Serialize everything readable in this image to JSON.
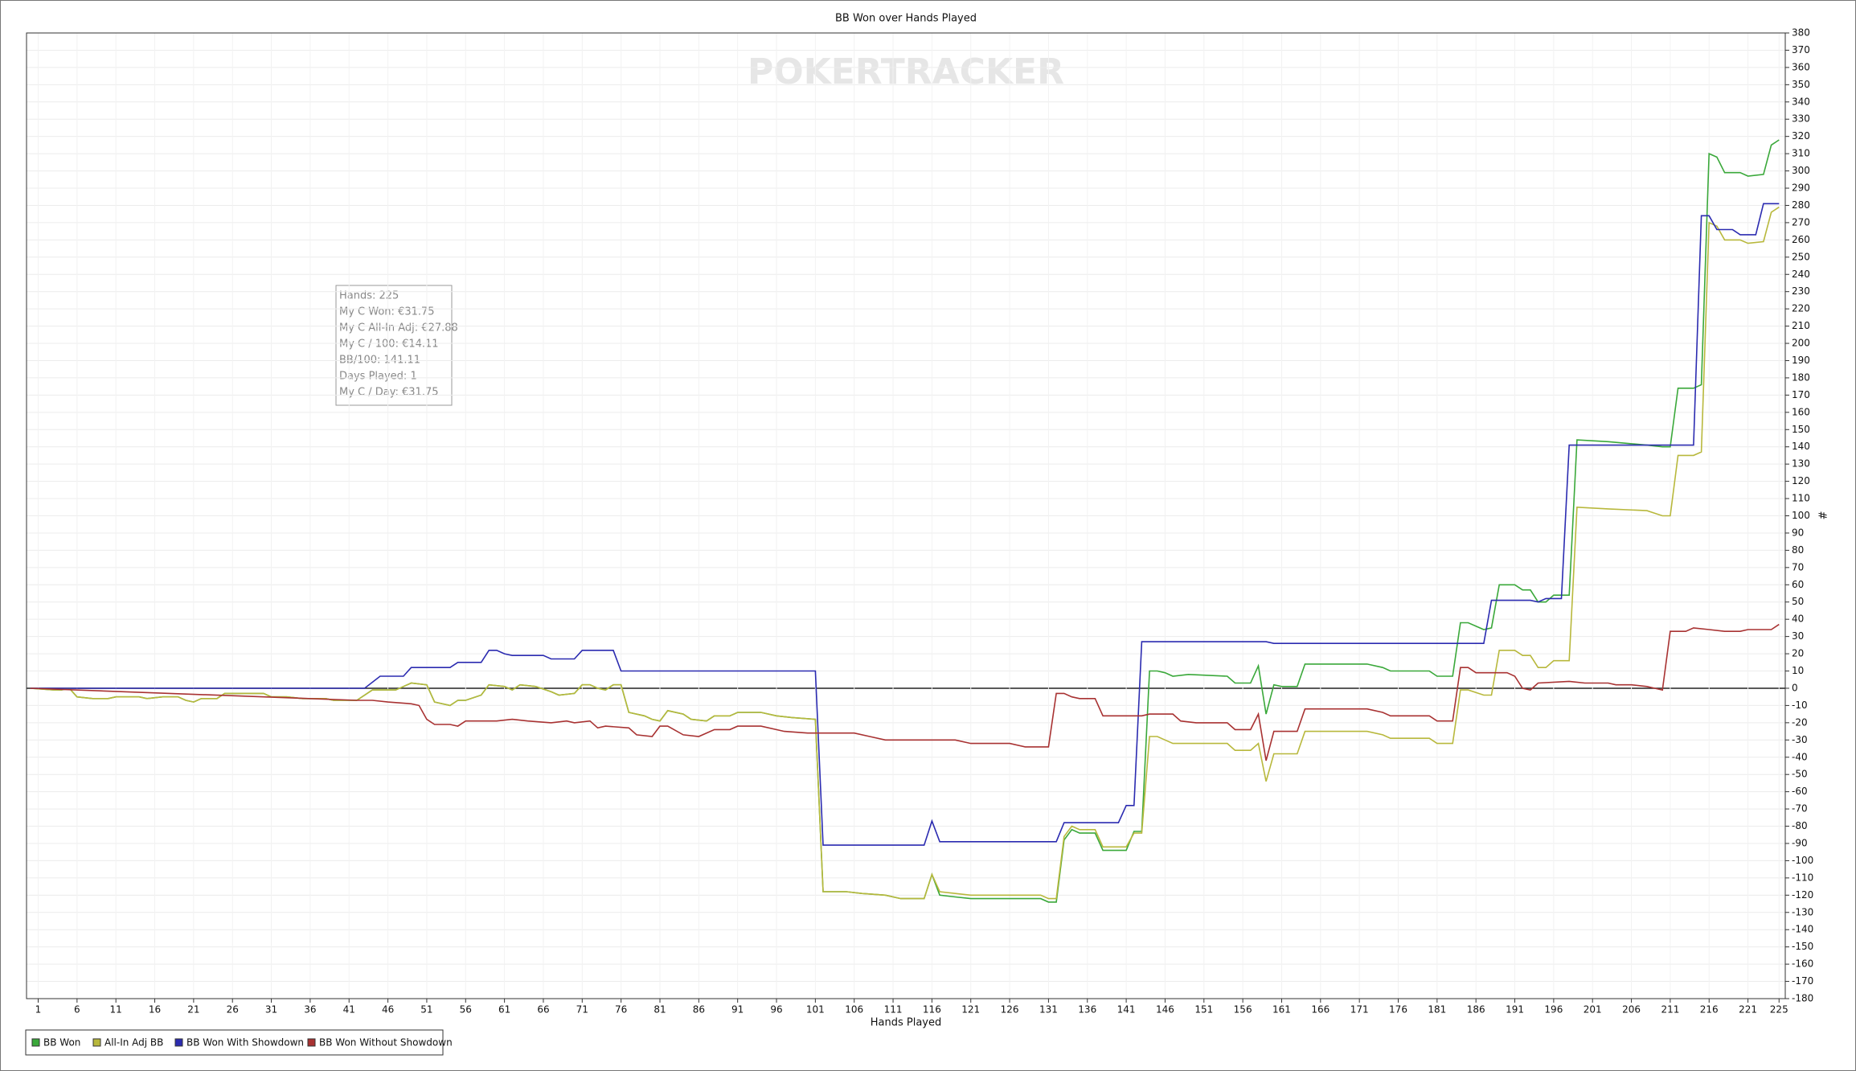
{
  "chart_data": {
    "type": "line",
    "title": "BB Won over Hands Played",
    "watermark": "POKERTRACKER",
    "x_label": "Hands Played",
    "y_label": "#",
    "xlim": [
      -0.5,
      225.8
    ],
    "ylim": [
      -180,
      380
    ],
    "xticks": [
      1,
      6,
      11,
      16,
      21,
      26,
      31,
      36,
      41,
      46,
      51,
      56,
      61,
      66,
      71,
      76,
      81,
      86,
      91,
      96,
      101,
      106,
      111,
      116,
      121,
      126,
      131,
      136,
      141,
      146,
      151,
      156,
      161,
      166,
      171,
      176,
      181,
      186,
      191,
      196,
      201,
      206,
      211,
      216,
      221,
      225
    ],
    "yticks": [
      -180,
      -170,
      -160,
      -150,
      -140,
      -130,
      -120,
      -110,
      -100,
      -90,
      -80,
      -70,
      -60,
      -50,
      -40,
      -30,
      -20,
      -10,
      0,
      10,
      20,
      30,
      40,
      50,
      60,
      70,
      80,
      90,
      100,
      110,
      120,
      130,
      140,
      150,
      160,
      170,
      180,
      190,
      200,
      210,
      220,
      230,
      240,
      250,
      260,
      270,
      280,
      290,
      300,
      310,
      320,
      330,
      340,
      350,
      360,
      370,
      380
    ],
    "grid": true,
    "tooltip": [
      "Hands: 225",
      "My C Won: €31.75",
      "My C All-In Adj: €27.88",
      "My C / 100: €14.11",
      "BB/100: 141.11",
      "Days Played: 1",
      "My C / Day: €31.75"
    ],
    "series": [
      {
        "name": "BB Won",
        "color": "#3aa83a",
        "x": [
          0,
          3,
          4,
          5,
          6,
          8,
          10,
          11,
          14,
          15,
          17,
          19,
          20,
          21,
          22,
          24,
          25,
          30,
          31,
          33,
          35,
          38,
          39,
          42,
          44,
          47,
          48,
          49,
          51,
          52,
          54,
          55,
          56,
          58,
          59,
          61,
          62,
          63,
          65,
          67,
          68,
          70,
          71,
          72,
          73,
          74,
          75,
          76,
          77,
          79,
          80,
          81,
          82,
          84,
          85,
          87,
          88,
          90,
          91,
          94,
          96,
          98,
          101,
          102,
          105,
          107,
          110,
          112,
          115,
          116,
          117,
          119,
          121,
          130,
          131,
          132,
          133,
          134,
          135,
          137,
          138,
          141,
          142,
          143,
          144,
          145,
          146,
          147,
          149,
          154,
          155,
          157,
          158,
          159,
          160,
          161,
          163,
          164,
          172,
          174,
          175,
          180,
          181,
          183,
          184,
          185,
          187,
          188,
          189,
          191,
          192,
          193,
          194,
          195,
          196,
          198,
          199,
          203,
          208,
          210,
          211,
          212,
          214,
          215,
          216,
          217,
          218,
          220,
          221,
          223,
          224,
          225
        ],
        "values": [
          0,
          -1,
          -1,
          0,
          -5,
          -6,
          -6,
          -5,
          -5,
          -6,
          -5,
          -5,
          -7,
          -8,
          -6,
          -6,
          -3,
          -3,
          -5,
          -5,
          -6,
          -6,
          -7,
          -7,
          -1,
          -1,
          1,
          3,
          2,
          -8,
          -10,
          -7,
          -7,
          -4,
          2,
          1,
          -1,
          2,
          1,
          -2,
          -4,
          -3,
          2,
          2,
          0,
          -1,
          2,
          2,
          -14,
          -16,
          -18,
          -19,
          -13,
          -15,
          -18,
          -19,
          -16,
          -16,
          -14,
          -14,
          -16,
          -17,
          -18,
          -118,
          -118,
          -119,
          -120,
          -122,
          -122,
          -108,
          -120,
          -121,
          -122,
          -122,
          -124,
          -124,
          -88,
          -82,
          -84,
          -84,
          -94,
          -94,
          -83,
          -83,
          10,
          10,
          9,
          7,
          8,
          7,
          3,
          3,
          13,
          -15,
          2,
          1,
          1,
          14,
          14,
          12,
          10,
          10,
          7,
          7,
          38,
          38,
          34,
          35,
          60,
          60,
          57,
          57,
          50,
          50,
          54,
          54,
          144,
          143,
          141,
          140,
          140,
          174,
          174,
          176,
          310,
          308,
          299,
          299,
          297,
          298,
          315,
          318
        ]
      },
      {
        "name": "All-In Adj BB",
        "color": "#b8b83c",
        "x": [
          0,
          3,
          4,
          5,
          6,
          8,
          10,
          11,
          14,
          15,
          17,
          19,
          20,
          21,
          22,
          24,
          25,
          30,
          31,
          33,
          35,
          38,
          39,
          42,
          44,
          47,
          48,
          49,
          51,
          52,
          54,
          55,
          56,
          58,
          59,
          61,
          62,
          63,
          65,
          67,
          68,
          70,
          71,
          72,
          73,
          74,
          75,
          76,
          77,
          79,
          80,
          81,
          82,
          84,
          85,
          87,
          88,
          90,
          91,
          94,
          96,
          98,
          101,
          102,
          105,
          107,
          110,
          112,
          115,
          116,
          117,
          119,
          121,
          130,
          131,
          132,
          133,
          134,
          135,
          137,
          138,
          141,
          142,
          143,
          144,
          145,
          146,
          147,
          149,
          154,
          155,
          157,
          158,
          159,
          160,
          161,
          163,
          164,
          172,
          174,
          175,
          180,
          181,
          183,
          184,
          185,
          187,
          188,
          189,
          191,
          192,
          193,
          194,
          195,
          196,
          198,
          199,
          203,
          208,
          210,
          211,
          212,
          214,
          215,
          216,
          217,
          218,
          220,
          221,
          223,
          224,
          225
        ],
        "values": [
          0,
          -1,
          -1,
          0,
          -5,
          -6,
          -6,
          -5,
          -5,
          -6,
          -5,
          -5,
          -7,
          -8,
          -6,
          -6,
          -3,
          -3,
          -5,
          -5,
          -6,
          -6,
          -7,
          -7,
          -1,
          -1,
          1,
          3,
          2,
          -8,
          -10,
          -7,
          -7,
          -4,
          2,
          1,
          -1,
          2,
          1,
          -2,
          -4,
          -3,
          2,
          2,
          0,
          -1,
          2,
          2,
          -14,
          -16,
          -18,
          -19,
          -13,
          -15,
          -18,
          -19,
          -16,
          -16,
          -14,
          -14,
          -16,
          -17,
          -18,
          -118,
          -118,
          -119,
          -120,
          -122,
          -122,
          -108,
          -118,
          -119,
          -120,
          -120,
          -122,
          -122,
          -86,
          -80,
          -82,
          -82,
          -92,
          -92,
          -84,
          -84,
          -28,
          -28,
          -30,
          -32,
          -32,
          -32,
          -36,
          -36,
          -32,
          -54,
          -38,
          -38,
          -38,
          -25,
          -25,
          -27,
          -29,
          -29,
          -32,
          -32,
          -1,
          -1,
          -4,
          -4,
          22,
          22,
          19,
          19,
          12,
          12,
          16,
          16,
          105,
          104,
          103,
          100,
          100,
          135,
          135,
          137,
          270,
          268,
          260,
          260,
          258,
          259,
          276,
          279
        ]
      },
      {
        "name": "BB Won With Showdown",
        "color": "#2b2bb0",
        "x": [
          0,
          43,
          45,
          48,
          49,
          54,
          55,
          58,
          59,
          60,
          61,
          62,
          66,
          67,
          70,
          71,
          75,
          76,
          101,
          102,
          115,
          116,
          117,
          132,
          133,
          140,
          141,
          142,
          143,
          159,
          160,
          187,
          188,
          193,
          194,
          195,
          197,
          198,
          214,
          215,
          216,
          217,
          219,
          220,
          222,
          223,
          225
        ],
        "values": [
          0,
          0,
          7,
          7,
          12,
          12,
          15,
          15,
          22,
          22,
          20,
          19,
          19,
          17,
          17,
          22,
          22,
          10,
          10,
          -91,
          -91,
          -77,
          -89,
          -89,
          -78,
          -78,
          -68,
          -68,
          27,
          27,
          26,
          26,
          51,
          51,
          50,
          52,
          52,
          141,
          141,
          274,
          274,
          266,
          266,
          263,
          263,
          281,
          281
        ]
      },
      {
        "name": "BB Won Without Showdown",
        "color": "#a83232",
        "x": [
          0,
          42,
          44,
          46,
          49,
          50,
          51,
          52,
          54,
          55,
          56,
          60,
          62,
          64,
          67,
          69,
          70,
          72,
          73,
          74,
          77,
          78,
          80,
          81,
          82,
          84,
          86,
          88,
          90,
          91,
          94,
          97,
          100,
          106,
          108,
          110,
          119,
          121,
          126,
          128,
          131,
          132,
          133,
          134,
          135,
          137,
          138,
          143,
          144,
          147,
          148,
          150,
          154,
          155,
          157,
          158,
          159,
          160,
          163,
          164,
          172,
          174,
          175,
          180,
          181,
          183,
          184,
          185,
          186,
          190,
          191,
          192,
          193,
          194,
          198,
          200,
          203,
          204,
          206,
          208,
          209,
          210,
          211,
          213,
          214,
          216,
          218,
          220,
          221,
          224,
          225
        ],
        "values": [
          0,
          -7,
          -7,
          -8,
          -9,
          -10,
          -18,
          -21,
          -21,
          -22,
          -19,
          -19,
          -18,
          -19,
          -20,
          -19,
          -20,
          -19,
          -23,
          -22,
          -23,
          -27,
          -28,
          -22,
          -22,
          -27,
          -28,
          -24,
          -24,
          -22,
          -22,
          -25,
          -26,
          -26,
          -28,
          -30,
          -30,
          -32,
          -32,
          -34,
          -34,
          -3,
          -3,
          -5,
          -6,
          -6,
          -16,
          -16,
          -15,
          -15,
          -19,
          -20,
          -20,
          -24,
          -24,
          -15,
          -42,
          -25,
          -25,
          -12,
          -12,
          -14,
          -16,
          -16,
          -19,
          -19,
          12,
          12,
          9,
          9,
          7,
          0,
          -1,
          3,
          4,
          3,
          3,
          2,
          2,
          1,
          0,
          -1,
          33,
          33,
          35,
          34,
          33,
          33,
          34,
          34,
          37
        ]
      }
    ]
  }
}
